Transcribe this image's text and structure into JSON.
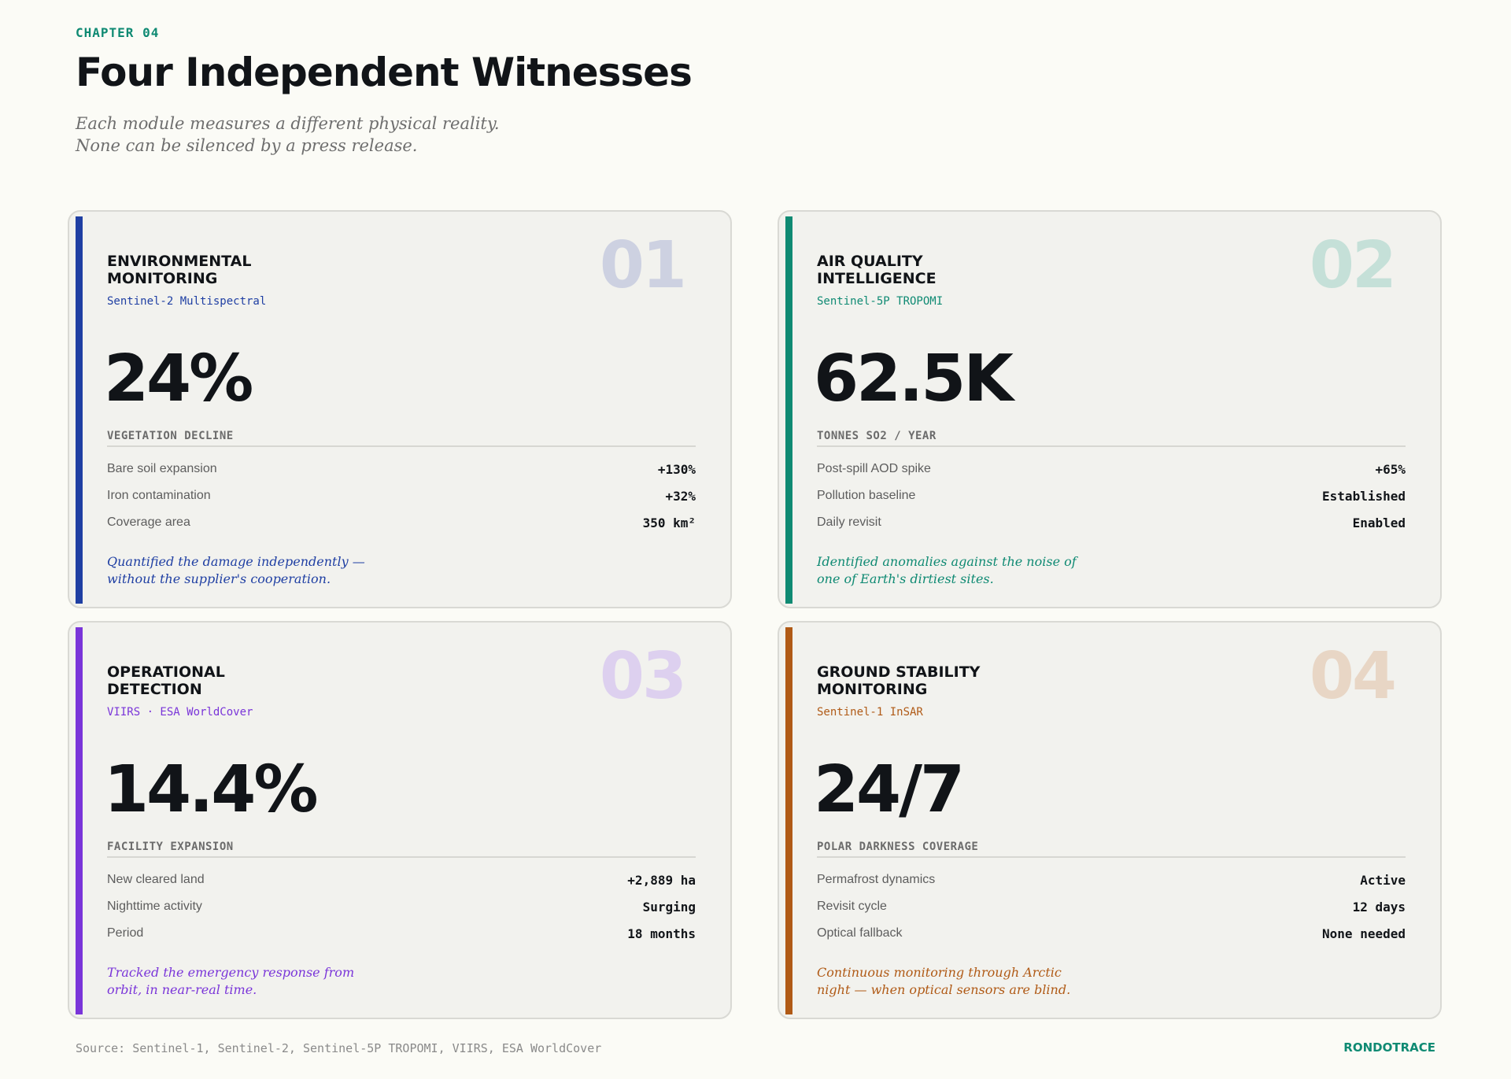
{
  "header": {
    "chapter": "CHAPTER 04",
    "title": "Four Independent Witnesses",
    "subtitle_lines": [
      "Each module measures a different physical reality.",
      "None can be silenced by a press release."
    ]
  },
  "colors": {
    "brand": "#0f8a73",
    "module_1": "#1f3fa3",
    "module_2": "#0f8a73",
    "module_3": "#7a35d9",
    "module_4": "#b05a16"
  },
  "modules": [
    {
      "number": "01",
      "title_lines": [
        "ENVIRONMENTAL",
        "MONITORING"
      ],
      "source": "Sentinel-2 Multispectral",
      "metric": "24%",
      "metric_label": "VEGETATION DECLINE",
      "stats": [
        {
          "label": "Bare soil expansion",
          "value": "+130%"
        },
        {
          "label": "Iron contamination",
          "value": "+32%"
        },
        {
          "label": "Coverage area",
          "value": "350 km²"
        }
      ],
      "note_lines": [
        "Quantified the damage independently —",
        "without the supplier's cooperation."
      ]
    },
    {
      "number": "02",
      "title_lines": [
        "AIR QUALITY",
        "INTELLIGENCE"
      ],
      "source": "Sentinel-5P TROPOMI",
      "metric": "62.5K",
      "metric_label": "TONNES SO2 / YEAR",
      "stats": [
        {
          "label": "Post-spill AOD spike",
          "value": "+65%"
        },
        {
          "label": "Pollution baseline",
          "value": "Established"
        },
        {
          "label": "Daily revisit",
          "value": "Enabled"
        }
      ],
      "note_lines": [
        "Identified anomalies against the noise of",
        "one of Earth's dirtiest sites."
      ]
    },
    {
      "number": "03",
      "title_lines": [
        "OPERATIONAL",
        "DETECTION"
      ],
      "source": "VIIRS · ESA WorldCover",
      "metric": "14.4%",
      "metric_label": "FACILITY EXPANSION",
      "stats": [
        {
          "label": "New cleared land",
          "value": "+2,889 ha"
        },
        {
          "label": "Nighttime activity",
          "value": "Surging"
        },
        {
          "label": "Period",
          "value": "18 months"
        }
      ],
      "note_lines": [
        "Tracked the emergency response from",
        "orbit, in near-real time."
      ]
    },
    {
      "number": "04",
      "title_lines": [
        "GROUND STABILITY",
        "MONITORING"
      ],
      "source": "Sentinel-1 InSAR",
      "metric": "24/7",
      "metric_label": "POLAR DARKNESS COVERAGE",
      "stats": [
        {
          "label": "Permafrost dynamics",
          "value": "Active"
        },
        {
          "label": "Revisit cycle",
          "value": "12 days"
        },
        {
          "label": "Optical fallback",
          "value": "None needed"
        }
      ],
      "note_lines": [
        "Continuous monitoring through Arctic",
        "night — when optical sensors are blind."
      ]
    }
  ],
  "footer": {
    "source": "Source: Sentinel-1, Sentinel-2, Sentinel-5P TROPOMI, VIIRS, ESA WorldCover",
    "brand": "RONDOTRACE"
  }
}
